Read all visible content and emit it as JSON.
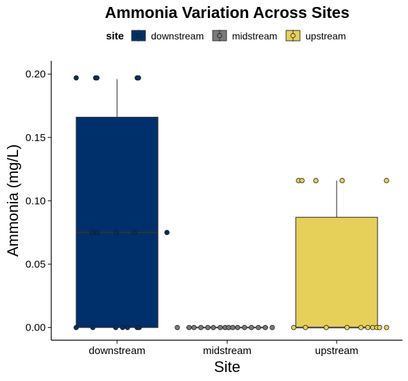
{
  "chart_data": {
    "type": "boxplot",
    "title": "Ammonia Variation Across Sites",
    "xlabel": "Site",
    "ylabel": "Ammonia (mg/L)",
    "categories": [
      "downstream",
      "midstream",
      "upstream"
    ],
    "ylim": [
      -0.01,
      0.205
    ],
    "yticks": [
      "0.00",
      "0.05",
      "0.10",
      "0.15",
      "0.20"
    ],
    "ytick_values": [
      0,
      0.05,
      0.1,
      0.15,
      0.2
    ],
    "grid": false,
    "legend": {
      "title": "site",
      "placement": "top",
      "entries": [
        "downstream",
        "midstream",
        "upstream"
      ]
    },
    "colors": {
      "downstream": "#00306b",
      "midstream": "#7a7a7a",
      "upstream": "#e6d05a"
    },
    "boxes": [
      {
        "name": "downstream",
        "q1": 0.0,
        "median": 0.075,
        "q3": 0.166,
        "whisker_low": 0.0,
        "whisker_high": 0.196
      },
      {
        "name": "midstream",
        "q1": 0.0,
        "median": 0.0,
        "q3": 0.0,
        "whisker_low": 0.0,
        "whisker_high": 0.0
      },
      {
        "name": "upstream",
        "q1": 0.0,
        "median": 0.0,
        "q3": 0.087,
        "whisker_low": 0.0,
        "whisker_high": 0.116
      }
    ],
    "points": [
      {
        "site": "downstream",
        "jitter": -0.59,
        "y": 0.197
      },
      {
        "site": "downstream",
        "jitter": -0.31,
        "y": 0.197
      },
      {
        "site": "downstream",
        "jitter": -0.29,
        "y": 0.197
      },
      {
        "site": "downstream",
        "jitter": 0.29,
        "y": 0.197
      },
      {
        "site": "downstream",
        "jitter": 0.31,
        "y": 0.197
      },
      {
        "site": "downstream",
        "jitter": -0.36,
        "y": 0.075
      },
      {
        "site": "downstream",
        "jitter": -0.29,
        "y": 0.075
      },
      {
        "site": "downstream",
        "jitter": -0.01,
        "y": 0.075
      },
      {
        "site": "downstream",
        "jitter": 0.25,
        "y": 0.075
      },
      {
        "site": "downstream",
        "jitter": 0.72,
        "y": 0.075
      },
      {
        "site": "downstream",
        "jitter": -0.59,
        "y": 0.0
      },
      {
        "site": "downstream",
        "jitter": -0.35,
        "y": 0.0
      },
      {
        "site": "downstream",
        "jitter": -0.02,
        "y": 0.0
      },
      {
        "site": "downstream",
        "jitter": 0.08,
        "y": 0.0
      },
      {
        "site": "downstream",
        "jitter": 0.15,
        "y": 0.0
      },
      {
        "site": "downstream",
        "jitter": 0.29,
        "y": 0.0
      },
      {
        "site": "downstream",
        "jitter": 0.32,
        "y": 0.0
      },
      {
        "site": "midstream",
        "jitter": -0.72,
        "y": 0.0
      },
      {
        "site": "midstream",
        "jitter": -0.55,
        "y": 0.0
      },
      {
        "site": "midstream",
        "jitter": -0.48,
        "y": 0.0
      },
      {
        "site": "midstream",
        "jitter": -0.38,
        "y": 0.0
      },
      {
        "site": "midstream",
        "jitter": -0.28,
        "y": 0.0
      },
      {
        "site": "midstream",
        "jitter": -0.2,
        "y": 0.0
      },
      {
        "site": "midstream",
        "jitter": -0.1,
        "y": 0.0
      },
      {
        "site": "midstream",
        "jitter": -0.03,
        "y": 0.0
      },
      {
        "site": "midstream",
        "jitter": 0.02,
        "y": 0.0
      },
      {
        "site": "midstream",
        "jitter": 0.08,
        "y": 0.0
      },
      {
        "site": "midstream",
        "jitter": 0.15,
        "y": 0.0
      },
      {
        "site": "midstream",
        "jitter": 0.25,
        "y": 0.0
      },
      {
        "site": "midstream",
        "jitter": 0.35,
        "y": 0.0
      },
      {
        "site": "midstream",
        "jitter": 0.45,
        "y": 0.0
      },
      {
        "site": "midstream",
        "jitter": 0.55,
        "y": 0.0
      },
      {
        "site": "midstream",
        "jitter": 0.65,
        "y": 0.0
      },
      {
        "site": "upstream",
        "jitter": -0.55,
        "y": 0.116
      },
      {
        "site": "upstream",
        "jitter": -0.5,
        "y": 0.116
      },
      {
        "site": "upstream",
        "jitter": -0.3,
        "y": 0.116
      },
      {
        "site": "upstream",
        "jitter": 0.08,
        "y": 0.116
      },
      {
        "site": "upstream",
        "jitter": 0.72,
        "y": 0.116
      },
      {
        "site": "upstream",
        "jitter": -0.62,
        "y": 0.0
      },
      {
        "site": "upstream",
        "jitter": -0.45,
        "y": 0.0
      },
      {
        "site": "upstream",
        "jitter": -0.15,
        "y": 0.0
      },
      {
        "site": "upstream",
        "jitter": 0.15,
        "y": 0.0
      },
      {
        "site": "upstream",
        "jitter": 0.35,
        "y": 0.0
      },
      {
        "site": "upstream",
        "jitter": 0.45,
        "y": 0.0
      },
      {
        "site": "upstream",
        "jitter": 0.52,
        "y": 0.0
      },
      {
        "site": "upstream",
        "jitter": 0.58,
        "y": 0.0
      },
      {
        "site": "upstream",
        "jitter": 0.62,
        "y": 0.0
      },
      {
        "site": "upstream",
        "jitter": 0.72,
        "y": 0.0
      }
    ]
  }
}
